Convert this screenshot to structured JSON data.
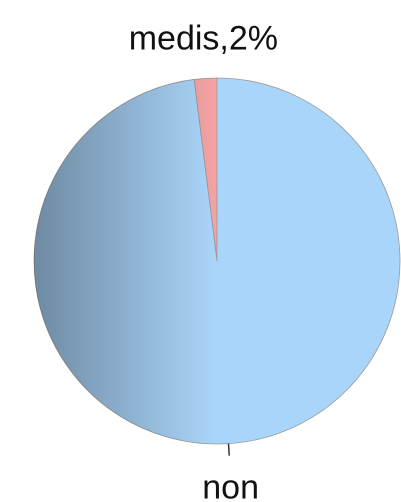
{
  "chart_data": {
    "type": "pie",
    "categories": [
      "medis",
      "non"
    ],
    "values": [
      2,
      98
    ],
    "value_labels": [
      "medis,2%",
      null
    ],
    "colors": [
      "#f4a3a3",
      "#aad5fa"
    ]
  }
}
